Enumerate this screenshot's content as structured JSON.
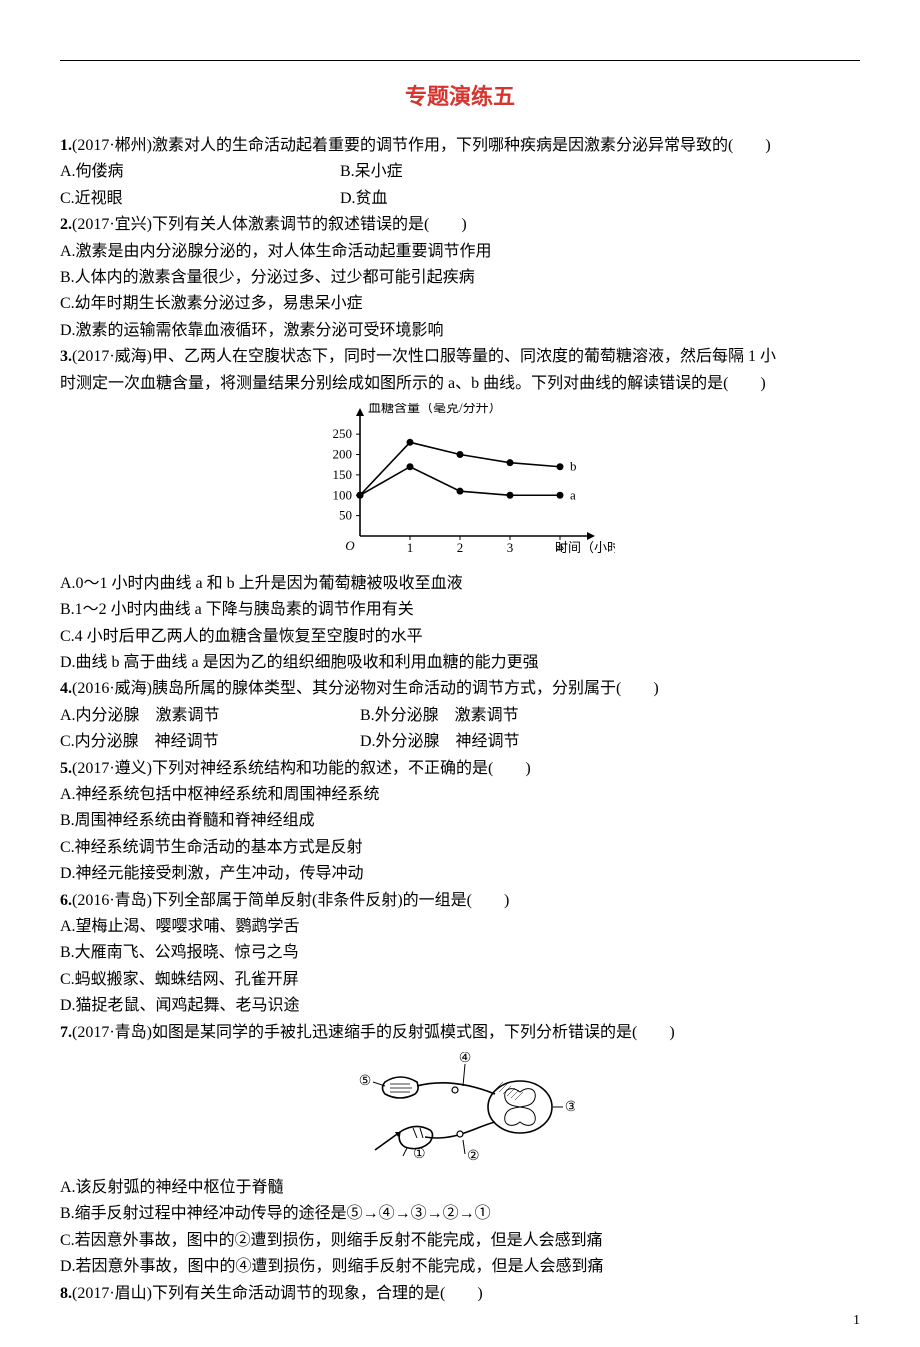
{
  "title_color": "#d8342d",
  "title": "专题演练五",
  "page_number": "1",
  "q1": {
    "stem": "(2017·郴州)激素对人的生命活动起着重要的调节作用，下列哪种疾病是因激素分泌异常导致的(　　)",
    "num": "1.",
    "A": "A.佝偻病",
    "B": "B.呆小症",
    "C": "C.近视眼",
    "D": "D.贫血"
  },
  "q2": {
    "num": "2.",
    "stem": "(2017·宜兴)下列有关人体激素调节的叙述错误的是(　　)",
    "A": "A.激素是由内分泌腺分泌的，对人体生命活动起重要调节作用",
    "B": "B.人体内的激素含量很少，分泌过多、过少都可能引起疾病",
    "C": "C.幼年时期生长激素分泌过多，易患呆小症",
    "D": "D.激素的运输需依靠血液循环，激素分泌可受环境影响"
  },
  "q3": {
    "num": "3.",
    "stem_l1": "(2017·威海)甲、乙两人在空腹状态下，同时一次性口服等量的、同浓度的葡萄糖溶液，然后每隔 1 小",
    "stem_l2": "时测定一次血糖含量，将测量结果分别绘成如图所示的 a、b 曲线。下列对曲线的解读错误的是(　　)",
    "A": "A.0～1 小时内曲线 a 和 b 上升是因为葡萄糖被吸收至血液",
    "B": "B.1～2 小时内曲线 a 下降与胰岛素的调节作用有关",
    "C": "C.4 小时后甲乙两人的血糖含量恢复至空腹时的水平",
    "D": "D.曲线 b 高于曲线 a 是因为乙的组织细胞吸收和利用血糖的能力更强",
    "chart": {
      "type": "line",
      "xlabel": "时间（小时）",
      "ylabel": "血糖含量（毫克/分升）",
      "y_ticks": [
        50,
        100,
        150,
        200,
        250
      ],
      "x_ticks": [
        1,
        2,
        3,
        4
      ],
      "xlim": [
        0,
        4.3
      ],
      "ylim": [
        0,
        270
      ],
      "series": [
        {
          "name": "b",
          "points": [
            [
              0,
              100
            ],
            [
              1,
              230
            ],
            [
              2,
              200
            ],
            [
              3,
              180
            ],
            [
              4,
              170
            ]
          ],
          "color": "#000000"
        },
        {
          "name": "a",
          "points": [
            [
              0,
              100
            ],
            [
              1,
              170
            ],
            [
              2,
              110
            ],
            [
              3,
              100
            ],
            [
              4,
              100
            ]
          ],
          "color": "#000000"
        }
      ],
      "marker": "circle",
      "marker_size": 3.5,
      "line_width": 1.6,
      "axis_color": "#000000",
      "font_size": 13
    }
  },
  "q4": {
    "num": "4.",
    "stem": "(2016·威海)胰岛所属的腺体类型、其分泌物对生命活动的调节方式，分别属于(　　)",
    "A": "A.内分泌腺　激素调节",
    "B": "B.外分泌腺　激素调节",
    "C": "C.内分泌腺　神经调节",
    "D": "D.外分泌腺　神经调节"
  },
  "q5": {
    "num": "5.",
    "stem": "(2017·遵义)下列对神经系统结构和功能的叙述，不正确的是(　　)",
    "A": "A.神经系统包括中枢神经系统和周围神经系统",
    "B": "B.周围神经系统由脊髓和脊神经组成",
    "C": "C.神经系统调节生命活动的基本方式是反射",
    "D": "D.神经元能接受刺激，产生冲动，传导冲动"
  },
  "q6": {
    "num": "6.",
    "stem": "(2016·青岛)下列全部属于简单反射(非条件反射)的一组是(　　)",
    "A": "A.望梅止渴、嘤嘤求哺、鹦鹉学舌",
    "B": "B.大雁南飞、公鸡报晓、惊弓之鸟",
    "C": "C.蚂蚁搬家、蜘蛛结网、孔雀开屏",
    "D": "D.猫捉老鼠、闻鸡起舞、老马识途"
  },
  "q7": {
    "num": "7.",
    "stem": "(2017·青岛)如图是某同学的手被扎迅速缩手的反射弧模式图，下列分析错误的是(　　)",
    "A": "A.该反射弧的神经中枢位于脊髓",
    "B": "B.缩手反射过程中神经冲动传导的途径是⑤→④→③→②→①",
    "C": "C.若因意外事故，图中的②遭到损伤，则缩手反射不能完成，但是人会感到痛",
    "D": "D.若因意外事故，图中的④遭到损伤，则缩手反射不能完成，但是人会感到痛",
    "diagram": {
      "labels": [
        "①",
        "②",
        "③",
        "④",
        "⑤"
      ],
      "color": "#000000",
      "line_width": 1.6
    }
  },
  "q8": {
    "num": "8.",
    "stem": "(2017·眉山)下列有关生命活动调节的现象，合理的是(　　)"
  }
}
